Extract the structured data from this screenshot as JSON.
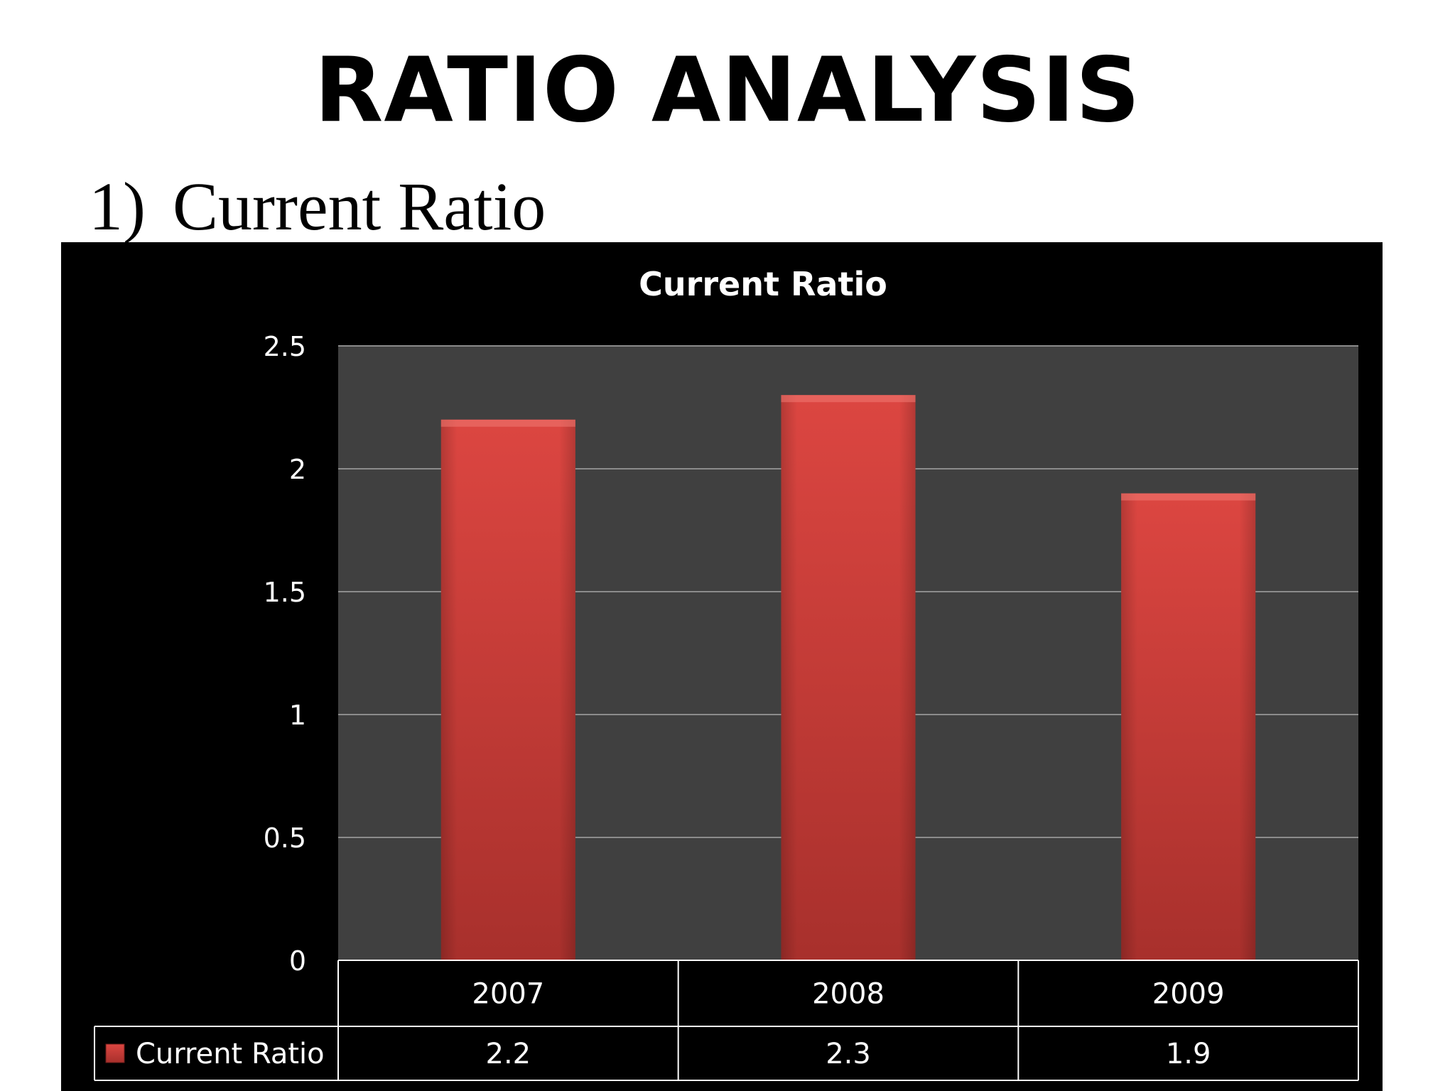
{
  "slide": {
    "title": "RATIO ANALYSIS",
    "section_number": "1)",
    "section_label": "Current Ratio"
  },
  "colors": {
    "panel_background": "#000000",
    "plot_background": "#404040",
    "gridline": "#8c8c8c",
    "bar_fill_top": "#dc4641",
    "bar_fill_bottom": "#a8302c",
    "text": "#ffffff"
  },
  "chart_data": {
    "type": "bar",
    "title": "Current Ratio",
    "categories": [
      "2007",
      "2008",
      "2009"
    ],
    "series": [
      {
        "name": "Current Ratio",
        "values": [
          2.2,
          2.3,
          1.9
        ],
        "value_labels": [
          "2.2",
          "2.3",
          "1.9"
        ],
        "color": "#d9403b"
      }
    ],
    "ylim": [
      0,
      2.5
    ],
    "yticks": [
      0,
      0.5,
      1,
      1.5,
      2,
      2.5
    ],
    "ytick_labels": [
      "0",
      "0.5",
      "1",
      "1.5",
      "2",
      "2.5"
    ],
    "grid": true,
    "legend_placement": "data table below plot",
    "data_table": true
  }
}
